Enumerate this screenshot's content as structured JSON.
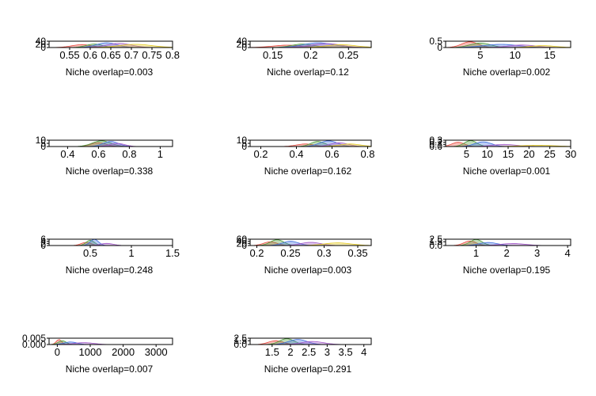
{
  "colors": {
    "series": [
      "#E8473C",
      "#4C9B3A",
      "#3F6FE0",
      "#A259C8",
      "#E2C821",
      "#E68A2E",
      "#8A6A3A",
      "#E07FB8"
    ]
  },
  "chart_data": [
    {
      "type": "area",
      "title": "",
      "caption": "Niche overlap=0.003",
      "xlim": [
        0.5,
        0.8
      ],
      "xticks": [
        "0.55",
        "0.6",
        "0.65",
        "0.7",
        "0.75",
        "0.8"
      ],
      "xtick_values": [
        0.55,
        0.6,
        0.65,
        0.7,
        0.75,
        0.8
      ],
      "ylim": [
        0,
        40
      ],
      "yticks": [
        "0",
        "20",
        "40"
      ],
      "ytick_values": [
        0,
        20,
        40
      ],
      "series": [
        {
          "center": 0.58,
          "spread": 0.025,
          "peak": 18
        },
        {
          "center": 0.61,
          "spread": 0.02,
          "peak": 22
        },
        {
          "center": 0.64,
          "spread": 0.025,
          "peak": 30
        },
        {
          "center": 0.67,
          "spread": 0.03,
          "peak": 26
        },
        {
          "center": 0.71,
          "spread": 0.04,
          "peak": 20
        }
      ]
    },
    {
      "type": "area",
      "title": "",
      "caption": "Niche overlap=0.12",
      "xlim": [
        0.12,
        0.28
      ],
      "xticks": [
        "0.15",
        "0.2",
        "0.25"
      ],
      "xtick_values": [
        0.15,
        0.2,
        0.25
      ],
      "ylim": [
        0,
        40
      ],
      "yticks": [
        "0",
        "20",
        "40"
      ],
      "ytick_values": [
        0,
        20,
        40
      ],
      "series": [
        {
          "center": 0.17,
          "spread": 0.02,
          "peak": 15
        },
        {
          "center": 0.19,
          "spread": 0.015,
          "peak": 22
        },
        {
          "center": 0.21,
          "spread": 0.02,
          "peak": 30
        },
        {
          "center": 0.22,
          "spread": 0.02,
          "peak": 25
        },
        {
          "center": 0.24,
          "spread": 0.02,
          "peak": 18
        }
      ]
    },
    {
      "type": "area",
      "title": "",
      "caption": "Niche overlap=0.002",
      "xlim": [
        0,
        18
      ],
      "xticks": [
        "5",
        "10",
        "15"
      ],
      "xtick_values": [
        5,
        10,
        15
      ],
      "ylim": [
        0,
        0.5
      ],
      "yticks": [
        "0",
        "0.5"
      ],
      "ytick_values": [
        0,
        0.5
      ],
      "series": [
        {
          "center": 3.5,
          "spread": 1.2,
          "peak": 0.45
        },
        {
          "center": 5,
          "spread": 1.5,
          "peak": 0.35
        },
        {
          "center": 8,
          "spread": 2.5,
          "peak": 0.25
        },
        {
          "center": 11,
          "spread": 2,
          "peak": 0.2
        },
        {
          "center": 14,
          "spread": 1.8,
          "peak": 0.15
        }
      ]
    },
    {
      "type": "area",
      "title": "",
      "caption": "Niche overlap=0.338",
      "xlim": [
        0.28,
        1.08
      ],
      "xticks": [
        "0.4",
        "0.6",
        "0.8",
        "1"
      ],
      "xtick_values": [
        0.4,
        0.6,
        0.8,
        1
      ],
      "ylim": [
        0,
        10
      ],
      "yticks": [
        "0",
        "5",
        "10"
      ],
      "ytick_values": [
        0,
        5,
        10
      ],
      "series": [
        {
          "center": 0.6,
          "spread": 0.05,
          "peak": 6
        },
        {
          "center": 0.62,
          "spread": 0.06,
          "peak": 9
        },
        {
          "center": 0.68,
          "spread": 0.05,
          "peak": 8
        },
        {
          "center": 0.72,
          "spread": 0.05,
          "peak": 5
        }
      ]
    },
    {
      "type": "area",
      "title": "",
      "caption": "Niche overlap=0.162",
      "xlim": [
        0.14,
        0.82
      ],
      "xticks": [
        "0.2",
        "0.4",
        "0.6",
        "0.8"
      ],
      "xtick_values": [
        0.2,
        0.4,
        0.6,
        0.8
      ],
      "ylim": [
        0,
        10
      ],
      "yticks": [
        "0",
        "5",
        "10"
      ],
      "ytick_values": [
        0,
        5,
        10
      ],
      "series": [
        {
          "center": 0.45,
          "spread": 0.05,
          "peak": 4
        },
        {
          "center": 0.52,
          "spread": 0.04,
          "peak": 8
        },
        {
          "center": 0.58,
          "spread": 0.05,
          "peak": 9
        },
        {
          "center": 0.64,
          "spread": 0.05,
          "peak": 6
        },
        {
          "center": 0.7,
          "spread": 0.06,
          "peak": 4
        }
      ]
    },
    {
      "type": "area",
      "title": "",
      "caption": "Niche overlap=0.001",
      "xlim": [
        0,
        30
      ],
      "xticks": [
        "5",
        "10",
        "15",
        "20",
        "25",
        "30"
      ],
      "xtick_values": [
        5,
        10,
        15,
        20,
        25,
        30
      ],
      "ylim": [
        0,
        0.3
      ],
      "yticks": [
        "0.0",
        "0.1",
        "0.2",
        "0.3"
      ],
      "ytick_values": [
        0,
        0.1,
        0.2,
        0.3
      ],
      "series": [
        {
          "center": 3,
          "spread": 1.5,
          "peak": 0.2
        },
        {
          "center": 6,
          "spread": 1.5,
          "peak": 0.28
        },
        {
          "center": 9,
          "spread": 2,
          "peak": 0.22
        },
        {
          "center": 14,
          "spread": 3,
          "peak": 0.1
        },
        {
          "center": 22,
          "spread": 4,
          "peak": 0.06
        }
      ]
    },
    {
      "type": "area",
      "title": "",
      "caption": "Niche overlap=0.248",
      "xlim": [
        0,
        1.5
      ],
      "xticks": [
        "0.5",
        "1",
        "1.5"
      ],
      "xtick_values": [
        0.5,
        1,
        1.5
      ],
      "ylim": [
        0,
        6
      ],
      "yticks": [
        "0",
        "2",
        "4",
        "6"
      ],
      "ytick_values": [
        0,
        2,
        4,
        6
      ],
      "series": [
        {
          "center": 0.45,
          "spread": 0.06,
          "peak": 3
        },
        {
          "center": 0.5,
          "spread": 0.05,
          "peak": 5
        },
        {
          "center": 0.55,
          "spread": 0.05,
          "peak": 6
        },
        {
          "center": 0.7,
          "spread": 0.08,
          "peak": 2
        }
      ]
    },
    {
      "type": "area",
      "title": "",
      "caption": "Niche overlap=0.003",
      "xlim": [
        0.19,
        0.37
      ],
      "xticks": [
        "0.2",
        "0.25",
        "0.3",
        "0.35"
      ],
      "xtick_values": [
        0.2,
        0.25,
        0.3,
        0.35
      ],
      "ylim": [
        0,
        60
      ],
      "yticks": [
        "0",
        "20",
        "40",
        "60"
      ],
      "ytick_values": [
        0,
        20,
        40,
        60
      ],
      "series": [
        {
          "center": 0.22,
          "spread": 0.01,
          "peak": 35
        },
        {
          "center": 0.23,
          "spread": 0.01,
          "peak": 55
        },
        {
          "center": 0.25,
          "spread": 0.012,
          "peak": 40
        },
        {
          "center": 0.28,
          "spread": 0.015,
          "peak": 30
        },
        {
          "center": 0.32,
          "spread": 0.02,
          "peak": 25
        }
      ]
    },
    {
      "type": "area",
      "title": "",
      "caption": "Niche overlap=0.195",
      "xlim": [
        0,
        4.1
      ],
      "xticks": [
        "1",
        "2",
        "3",
        "4"
      ],
      "xtick_values": [
        1,
        2,
        3,
        4
      ],
      "ylim": [
        0,
        2.5
      ],
      "yticks": [
        "0.0",
        "1.5",
        "2.5"
      ],
      "ytick_values": [
        0,
        1.5,
        2.5
      ],
      "series": [
        {
          "center": 0.8,
          "spread": 0.2,
          "peak": 1.8
        },
        {
          "center": 1.0,
          "spread": 0.2,
          "peak": 2.4
        },
        {
          "center": 1.4,
          "spread": 0.3,
          "peak": 1.2
        },
        {
          "center": 2.2,
          "spread": 0.4,
          "peak": 0.8
        }
      ]
    },
    {
      "type": "area",
      "title": "",
      "caption": "Niche overlap=0.007",
      "xlim": [
        -250,
        3500
      ],
      "xticks": [
        "0",
        "1000",
        "2000",
        "3000"
      ],
      "xtick_values": [
        0,
        1000,
        2000,
        3000
      ],
      "ylim": [
        0,
        0.005
      ],
      "yticks": [
        "0.000",
        "0.005"
      ],
      "ytick_values": [
        0,
        0.005
      ],
      "series": [
        {
          "center": 50,
          "spread": 80,
          "peak": 0.004
        },
        {
          "center": 150,
          "spread": 120,
          "peak": 0.003
        },
        {
          "center": 400,
          "spread": 200,
          "peak": 0.002
        },
        {
          "center": 800,
          "spread": 300,
          "peak": 0.0015
        }
      ]
    },
    {
      "type": "area",
      "title": "",
      "caption": "Niche overlap=0.291",
      "xlim": [
        0.9,
        4.2
      ],
      "xticks": [
        "1.5",
        "2",
        "2.5",
        "3",
        "3.5",
        "4"
      ],
      "xtick_values": [
        1.5,
        2,
        2.5,
        3,
        3.5,
        4
      ],
      "ylim": [
        0,
        2.5
      ],
      "yticks": [
        "0.0",
        "1.5",
        "2.5"
      ],
      "ytick_values": [
        0,
        1.5,
        2.5
      ],
      "series": [
        {
          "center": 1.6,
          "spread": 0.2,
          "peak": 1.5
        },
        {
          "center": 1.9,
          "spread": 0.2,
          "peak": 2.3
        },
        {
          "center": 2.2,
          "spread": 0.25,
          "peak": 2.0
        },
        {
          "center": 2.6,
          "spread": 0.3,
          "peak": 1.2
        }
      ]
    }
  ]
}
